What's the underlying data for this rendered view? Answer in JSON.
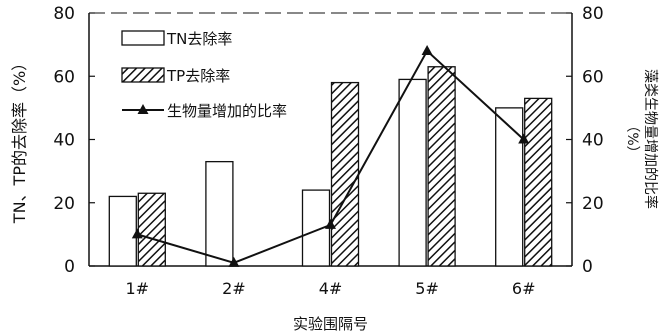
{
  "chart_data": {
    "type": "bar",
    "categories": [
      "1#",
      "2#",
      "4#",
      "5#",
      "6#"
    ],
    "series": [
      {
        "name": "TN去除率",
        "type": "bar",
        "axis": "left",
        "pattern": "solid",
        "values": [
          22,
          33,
          24,
          59,
          50
        ]
      },
      {
        "name": "TP去除率",
        "type": "bar",
        "axis": "left",
        "pattern": "hatched",
        "values": [
          23,
          0,
          58,
          63,
          53
        ]
      },
      {
        "name": "生物量增加的比率",
        "type": "line",
        "axis": "right",
        "marker": "triangle",
        "values": [
          10,
          1,
          13,
          68,
          40
        ]
      }
    ],
    "xlabel": "实验围隔号",
    "ylabel": "TN、TP的去除率（%）",
    "y2label_line1": "藻类生物量增加的比率",
    "y2label_line2": "（%）",
    "ylim": [
      0,
      80
    ],
    "y2lim": [
      0,
      80
    ],
    "yticks": [
      "0",
      "20",
      "40",
      "60",
      "80"
    ],
    "y2ticks": [
      "0",
      "20",
      "40",
      "60",
      "80"
    ],
    "legend_position": "top-left",
    "grid": false
  }
}
